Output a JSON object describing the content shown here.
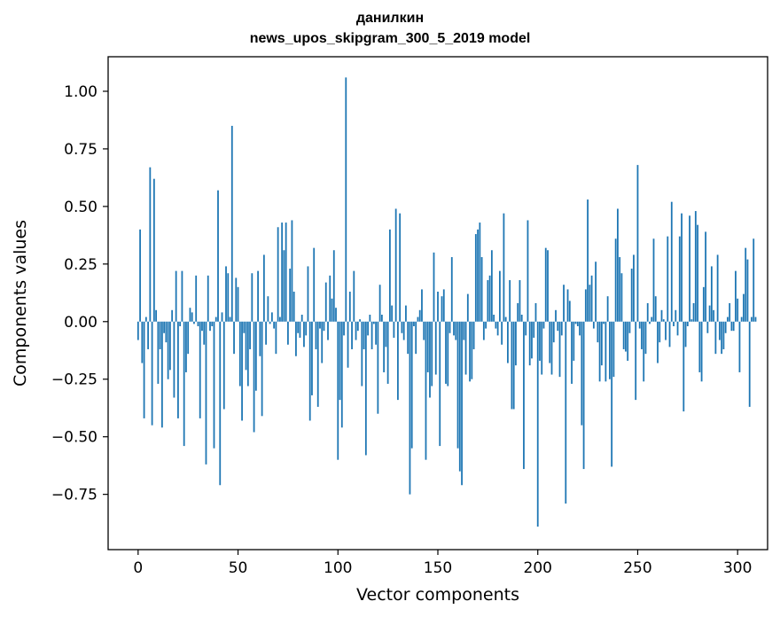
{
  "chart_data": {
    "type": "bar",
    "title": [
      "данилкин",
      "news_upos_skipgram_300_5_2019 model"
    ],
    "xlabel": "Vector components",
    "ylabel": "Components values",
    "xlim": [
      -15,
      315
    ],
    "ylim": [
      -0.99,
      1.15
    ],
    "xticks": [
      0,
      50,
      100,
      150,
      200,
      250,
      300
    ],
    "yticks": [
      -0.75,
      -0.5,
      -0.25,
      0.0,
      0.25,
      0.5,
      0.75,
      1.0
    ],
    "ytick_labels": [
      "−0.75",
      "−0.50",
      "−0.25",
      "0.00",
      "0.25",
      "0.50",
      "0.75",
      "1.00"
    ],
    "bar_color": "#1f77b4",
    "grid": false,
    "values": [
      -0.08,
      0.4,
      -0.18,
      -0.42,
      0.02,
      -0.12,
      0.67,
      -0.45,
      0.62,
      0.05,
      -0.27,
      -0.12,
      -0.46,
      -0.05,
      -0.09,
      -0.25,
      -0.21,
      0.05,
      -0.33,
      0.22,
      -0.42,
      -0.02,
      0.22,
      -0.54,
      -0.22,
      -0.14,
      0.06,
      0.04,
      -0.01,
      0.2,
      -0.02,
      -0.42,
      -0.04,
      -0.1,
      -0.62,
      0.2,
      -0.04,
      -0.02,
      -0.55,
      0.02,
      0.57,
      -0.71,
      0.04,
      -0.38,
      0.24,
      0.21,
      0.02,
      0.85,
      -0.14,
      0.19,
      0.15,
      -0.28,
      -0.43,
      -0.05,
      -0.21,
      -0.28,
      -0.12,
      0.21,
      -0.48,
      -0.3,
      0.22,
      -0.15,
      -0.41,
      0.29,
      -0.1,
      0.11,
      -0.01,
      0.04,
      -0.03,
      -0.14,
      0.41,
      0.02,
      0.43,
      0.31,
      0.43,
      -0.1,
      0.23,
      0.44,
      0.13,
      -0.15,
      -0.05,
      -0.07,
      0.03,
      -0.11,
      -0.06,
      0.24,
      -0.43,
      -0.32,
      0.32,
      -0.12,
      -0.37,
      -0.03,
      -0.18,
      -0.04,
      0.17,
      -0.08,
      0.2,
      0.1,
      0.31,
      0.06,
      -0.6,
      -0.34,
      -0.46,
      -0.06,
      1.06,
      -0.2,
      0.13,
      -0.12,
      0.22,
      -0.08,
      -0.04,
      0.01,
      -0.28,
      -0.12,
      -0.58,
      -0.06,
      0.03,
      -0.12,
      -0.01,
      -0.1,
      -0.4,
      0.16,
      0.03,
      -0.22,
      -0.11,
      -0.27,
      0.4,
      0.07,
      -0.07,
      0.49,
      -0.34,
      0.47,
      -0.05,
      -0.08,
      0.07,
      -0.14,
      -0.75,
      -0.55,
      -0.02,
      -0.14,
      0.02,
      0.05,
      0.14,
      -0.08,
      -0.6,
      -0.22,
      -0.33,
      -0.28,
      0.3,
      -0.23,
      0.13,
      -0.54,
      0.11,
      0.14,
      -0.27,
      -0.28,
      -0.05,
      0.28,
      -0.06,
      -0.08,
      -0.55,
      -0.65,
      -0.71,
      -0.08,
      -0.23,
      0.12,
      -0.26,
      -0.25,
      -0.12,
      0.38,
      0.4,
      0.43,
      0.28,
      -0.08,
      -0.03,
      0.18,
      0.2,
      0.31,
      0.03,
      -0.03,
      -0.06,
      0.22,
      -0.1,
      0.47,
      0.02,
      -0.18,
      0.18,
      -0.38,
      -0.38,
      -0.19,
      0.08,
      0.18,
      0.03,
      -0.64,
      -0.06,
      0.44,
      -0.19,
      -0.16,
      -0.07,
      0.08,
      -0.89,
      -0.17,
      -0.23,
      -0.03,
      0.32,
      0.31,
      -0.18,
      -0.23,
      -0.09,
      0.05,
      -0.04,
      -0.24,
      -0.06,
      0.16,
      -0.79,
      0.14,
      0.09,
      -0.27,
      -0.17,
      -0.01,
      -0.02,
      -0.06,
      -0.45,
      -0.64,
      0.14,
      0.53,
      0.16,
      0.2,
      -0.03,
      0.26,
      -0.09,
      -0.26,
      -0.19,
      -0.01,
      -0.26,
      0.11,
      -0.25,
      -0.63,
      -0.24,
      0.36,
      0.49,
      0.28,
      0.21,
      -0.12,
      -0.13,
      -0.17,
      -0.05,
      0.23,
      0.29,
      -0.34,
      0.68,
      -0.03,
      -0.12,
      -0.26,
      -0.14,
      0.08,
      -0.01,
      0.02,
      0.36,
      0.11,
      -0.18,
      -0.09,
      0.05,
      0.01,
      -0.08,
      0.37,
      -0.11,
      0.52,
      -0.02,
      0.05,
      -0.06,
      0.37,
      0.47,
      -0.39,
      -0.11,
      -0.02,
      0.46,
      0.01,
      0.08,
      0.48,
      0.42,
      -0.22,
      -0.26,
      0.15,
      0.39,
      -0.05,
      0.07,
      0.24,
      0.05,
      -0.14,
      0.29,
      -0.08,
      -0.14,
      -0.12,
      -0.05,
      0.02,
      0.08,
      -0.04,
      -0.04,
      0.22,
      0.1,
      -0.22,
      0.02,
      0.12,
      0.32,
      0.27,
      -0.37,
      0.02,
      0.36,
      0.02
    ]
  }
}
